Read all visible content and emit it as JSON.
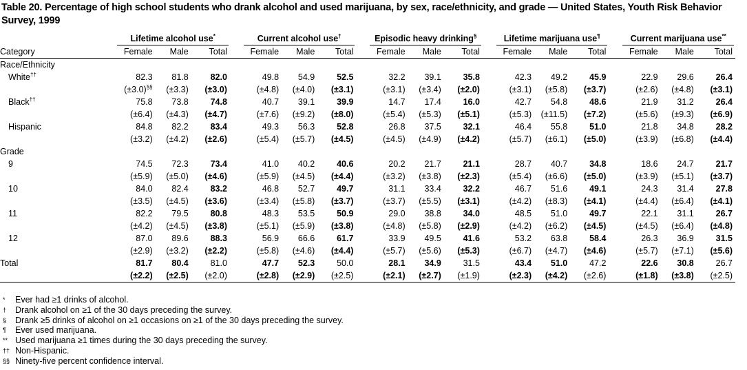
{
  "title": "Table 20. Percentage of high school students who drank alcohol and used marijuana, by sex, race/ethnicity, and grade — United States, Youth Risk Behavior Survey, 1999",
  "table": {
    "category_header": "Category",
    "groups": [
      {
        "label": "Lifetime alcohol use",
        "mark": "*"
      },
      {
        "label": "Current alcohol use",
        "mark": "†"
      },
      {
        "label": "Episodic heavy drinking",
        "mark": "§"
      },
      {
        "label": "Lifetime marijuana use",
        "mark": "¶"
      },
      {
        "label": "Current marijuana use",
        "mark": "**"
      }
    ],
    "subheaders": [
      "Female",
      "Male",
      "Total"
    ],
    "sections": [
      {
        "label": "Race/Ethnicity",
        "rows": [
          {
            "label": "White",
            "mark": "††",
            "ci_mark": "§§",
            "values": [
              "82.3",
              "81.8",
              "82.0",
              "49.8",
              "54.9",
              "52.5",
              "32.2",
              "39.1",
              "35.8",
              "42.3",
              "49.2",
              "45.9",
              "22.9",
              "29.6",
              "26.4"
            ],
            "ci": [
              "(±3.0)",
              "(±3.3)",
              "(±3.0)",
              "(±4.8)",
              "(±4.0)",
              "(±3.1)",
              "(±3.1)",
              "(±3.4)",
              "(±2.0)",
              "(±3.1)",
              "(±5.8)",
              "(±3.7)",
              "(±2.6)",
              "(±4.8)",
              "(±3.1)"
            ]
          },
          {
            "label": "Black",
            "mark": "††",
            "values": [
              "75.8",
              "73.8",
              "74.8",
              "40.7",
              "39.1",
              "39.9",
              "14.7",
              "17.4",
              "16.0",
              "42.7",
              "54.8",
              "48.6",
              "21.9",
              "31.2",
              "26.4"
            ],
            "ci": [
              "(±6.4)",
              "(±4.3)",
              "(±4.7)",
              "(±7.6)",
              "(±9.2)",
              "(±8.0)",
              "(±5.4)",
              "(±5.3)",
              "(±5.1)",
              "(±5.3)",
              "(±11.5)",
              "(±7.2)",
              "(±5.6)",
              "(±9.3)",
              "(±6.9)"
            ]
          },
          {
            "label": "Hispanic",
            "values": [
              "84.8",
              "82.2",
              "83.4",
              "49.3",
              "56.3",
              "52.8",
              "26.8",
              "37.5",
              "32.1",
              "46.4",
              "55.8",
              "51.0",
              "21.8",
              "34.8",
              "28.2"
            ],
            "ci": [
              "(±3.2)",
              "(±4.2)",
              "(±2.6)",
              "(±5.4)",
              "(±5.7)",
              "(±4.5)",
              "(±4.5)",
              "(±4.9)",
              "(±4.2)",
              "(±5.7)",
              "(±6.1)",
              "(±5.0)",
              "(±3.9)",
              "(±6.8)",
              "(±4.4)"
            ]
          }
        ]
      },
      {
        "label": "Grade",
        "rows": [
          {
            "label": "9",
            "values": [
              "74.5",
              "72.3",
              "73.4",
              "41.0",
              "40.2",
              "40.6",
              "20.2",
              "21.7",
              "21.1",
              "28.7",
              "40.7",
              "34.8",
              "18.6",
              "24.7",
              "21.7"
            ],
            "ci": [
              "(±5.9)",
              "(±5.0)",
              "(±4.6)",
              "(±5.9)",
              "(±4.5)",
              "(±4.4)",
              "(±3.2)",
              "(±3.8)",
              "(±2.3)",
              "(±5.4)",
              "(±6.6)",
              "(±5.0)",
              "(±3.9)",
              "(±5.1)",
              "(±3.7)"
            ]
          },
          {
            "label": "10",
            "values": [
              "84.0",
              "82.4",
              "83.2",
              "46.8",
              "52.7",
              "49.7",
              "31.1",
              "33.4",
              "32.2",
              "46.7",
              "51.6",
              "49.1",
              "24.3",
              "31.4",
              "27.8"
            ],
            "ci": [
              "(±3.5)",
              "(±4.5)",
              "(±3.6)",
              "(±3.4)",
              "(±5.8)",
              "(±3.7)",
              "(±3.7)",
              "(±5.5)",
              "(±3.1)",
              "(±4.2)",
              "(±8.3)",
              "(±4.1)",
              "(±4.4)",
              "(±6.4)",
              "(±4.1)"
            ]
          },
          {
            "label": "11",
            "values": [
              "82.2",
              "79.5",
              "80.8",
              "48.3",
              "53.5",
              "50.9",
              "29.0",
              "38.8",
              "34.0",
              "48.5",
              "51.0",
              "49.7",
              "22.1",
              "31.1",
              "26.7"
            ],
            "ci": [
              "(±4.2)",
              "(±4.5)",
              "(±3.8)",
              "(±5.1)",
              "(±5.9)",
              "(±3.8)",
              "(±4.8)",
              "(±5.8)",
              "(±2.9)",
              "(±4.2)",
              "(±6.2)",
              "(±4.5)",
              "(±4.5)",
              "(±6.4)",
              "(±4.8)"
            ]
          },
          {
            "label": "12",
            "values": [
              "87.0",
              "89.6",
              "88.3",
              "56.9",
              "66.6",
              "61.7",
              "33.9",
              "49.5",
              "41.6",
              "53.2",
              "63.8",
              "58.4",
              "26.3",
              "36.9",
              "31.5"
            ],
            "ci": [
              "(±2.9)",
              "(±3.2)",
              "(±2.2)",
              "(±5.8)",
              "(±4.6)",
              "(±4.4)",
              "(±5.7)",
              "(±5.6)",
              "(±5.3)",
              "(±6.7)",
              "(±4.7)",
              "(±4.6)",
              "(±5.7)",
              "(±7.1)",
              "(±5.6)"
            ]
          }
        ]
      }
    ],
    "total": {
      "label": "Total",
      "values": [
        "81.7",
        "80.4",
        "81.0",
        "47.7",
        "52.3",
        "50.0",
        "28.1",
        "34.9",
        "31.5",
        "43.4",
        "51.0",
        "47.2",
        "22.6",
        "30.8",
        "26.7"
      ],
      "ci": [
        "(±2.2)",
        "(±2.5)",
        "(±2.0)",
        "(±2.8)",
        "(±2.9)",
        "(±2.5)",
        "(±2.1)",
        "(±2.7)",
        "(±1.9)",
        "(±2.3)",
        "(±4.2)",
        "(±2.6)",
        "(±1.8)",
        "(±3.8)",
        "(±2.5)"
      ]
    }
  },
  "footnotes": [
    {
      "mark": "*",
      "text": "Ever had ≥1 drinks of alcohol."
    },
    {
      "mark": "†",
      "text": "Drank alcohol on ≥1 of the 30 days preceding the survey."
    },
    {
      "mark": "§",
      "text": "Drank ≥5 drinks of alcohol on ≥1 occasions on ≥1 of the 30 days preceding the survey."
    },
    {
      "mark": "¶",
      "text": "Ever used marijuana."
    },
    {
      "mark": "**",
      "text": "Used marijuana ≥1 times during the 30 days preceding the survey."
    },
    {
      "mark": "††",
      "text": "Non-Hispanic."
    },
    {
      "mark": "§§",
      "text": "Ninety-five percent confidence interval."
    }
  ]
}
